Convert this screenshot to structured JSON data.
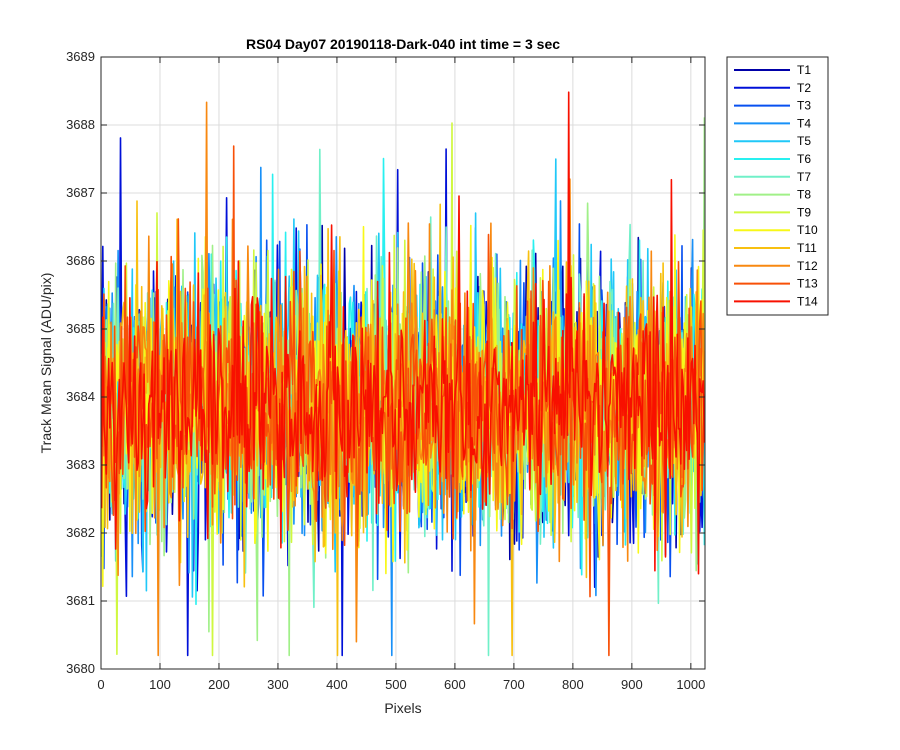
{
  "chart_data": {
    "type": "line",
    "title": "RS04 Day07 20190118-Dark-040 int time = 3 sec",
    "xlabel": "Pixels",
    "ylabel": "Track Mean Signal (ADU/pix)",
    "xlim": [
      0,
      1024
    ],
    "ylim": [
      3680,
      3689
    ],
    "xticks": [
      0,
      100,
      200,
      300,
      400,
      500,
      600,
      700,
      800,
      900,
      1000
    ],
    "yticks": [
      3680,
      3681,
      3682,
      3683,
      3684,
      3685,
      3686,
      3687,
      3688,
      3689
    ],
    "grid": true,
    "legend_position": "outside-top-right",
    "series_shape": "noise around a mean of ~3684 ADU/pix, typical range 3682-3686, occasional spikes to ~3680.5 and ~3688.5",
    "series": [
      {
        "name": "T1",
        "color": "#0000A8",
        "mean": 3683.9,
        "sd": 0.95
      },
      {
        "name": "T2",
        "color": "#0010D8",
        "mean": 3683.9,
        "sd": 0.95
      },
      {
        "name": "T3",
        "color": "#0850F0",
        "mean": 3683.9,
        "sd": 0.95
      },
      {
        "name": "T4",
        "color": "#1890F8",
        "mean": 3683.9,
        "sd": 0.95
      },
      {
        "name": "T5",
        "color": "#20C8F8",
        "mean": 3683.9,
        "sd": 0.95
      },
      {
        "name": "T6",
        "color": "#28F0F0",
        "mean": 3683.9,
        "sd": 0.95
      },
      {
        "name": "T7",
        "color": "#70F0C8",
        "mean": 3683.9,
        "sd": 0.95
      },
      {
        "name": "T8",
        "color": "#A0F088",
        "mean": 3683.9,
        "sd": 0.95
      },
      {
        "name": "T9",
        "color": "#D0F840",
        "mean": 3683.9,
        "sd": 0.95
      },
      {
        "name": "T10",
        "color": "#F8F818",
        "mean": 3683.9,
        "sd": 0.95
      },
      {
        "name": "T11",
        "color": "#F8C010",
        "mean": 3683.9,
        "sd": 0.95
      },
      {
        "name": "T12",
        "color": "#F88810",
        "mean": 3683.9,
        "sd": 0.95
      },
      {
        "name": "T13",
        "color": "#F85008",
        "mean": 3683.9,
        "sd": 0.95
      },
      {
        "name": "T14",
        "color": "#F81000",
        "mean": 3683.9,
        "sd": 0.8
      }
    ]
  }
}
